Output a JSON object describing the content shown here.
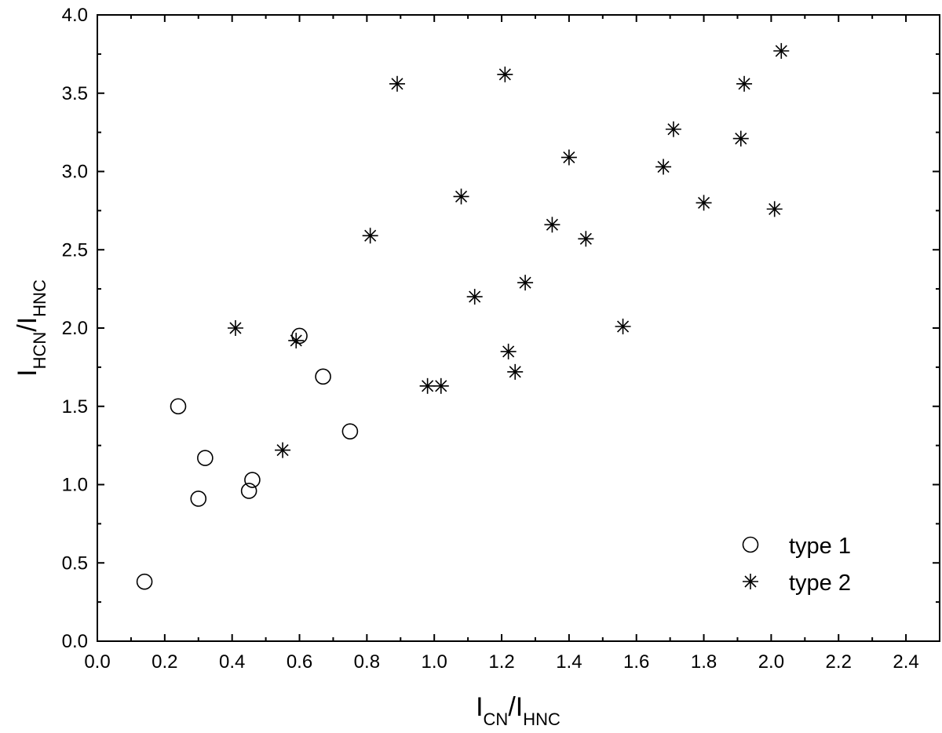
{
  "chart_data": {
    "type": "scatter",
    "title": "",
    "xlabel": {
      "main1": "I",
      "sub1": "CN",
      "sep": "/I",
      "sub2": "HNC"
    },
    "ylabel": {
      "main1": "I",
      "sub1": "HCN",
      "sep": "/I",
      "sub2": "HNC"
    },
    "xlim": [
      0.0,
      2.5
    ],
    "ylim": [
      0.0,
      4.0
    ],
    "xticks": [
      "0.0",
      "0.2",
      "0.4",
      "0.6",
      "0.8",
      "1.0",
      "1.2",
      "1.4",
      "1.6",
      "1.8",
      "2.0",
      "2.2",
      "2.4"
    ],
    "yticks": [
      "0.0",
      "0.5",
      "1.0",
      "1.5",
      "2.0",
      "2.5",
      "3.0",
      "3.5",
      "4.0"
    ],
    "grid": false,
    "legend_position": "bottom-right",
    "series": [
      {
        "name": "type 1",
        "marker": "open-circle",
        "points": [
          [
            0.14,
            0.38
          ],
          [
            0.24,
            1.5
          ],
          [
            0.3,
            0.91
          ],
          [
            0.32,
            1.17
          ],
          [
            0.45,
            0.96
          ],
          [
            0.46,
            1.03
          ],
          [
            0.6,
            1.95
          ],
          [
            0.67,
            1.69
          ],
          [
            0.75,
            1.34
          ]
        ]
      },
      {
        "name": "type 2",
        "marker": "asterisk",
        "points": [
          [
            0.41,
            2.0
          ],
          [
            0.55,
            1.22
          ],
          [
            0.59,
            1.92
          ],
          [
            0.81,
            2.59
          ],
          [
            0.89,
            3.56
          ],
          [
            0.98,
            1.63
          ],
          [
            1.02,
            1.63
          ],
          [
            1.08,
            2.84
          ],
          [
            1.12,
            2.2
          ],
          [
            1.21,
            3.62
          ],
          [
            1.22,
            1.85
          ],
          [
            1.24,
            1.72
          ],
          [
            1.27,
            2.29
          ],
          [
            1.35,
            2.66
          ],
          [
            1.4,
            3.09
          ],
          [
            1.45,
            2.57
          ],
          [
            1.56,
            2.01
          ],
          [
            1.68,
            3.03
          ],
          [
            1.71,
            3.27
          ],
          [
            1.8,
            2.8
          ],
          [
            1.91,
            3.21
          ],
          [
            1.92,
            3.56
          ],
          [
            2.01,
            2.76
          ],
          [
            2.03,
            3.77
          ]
        ]
      }
    ]
  }
}
